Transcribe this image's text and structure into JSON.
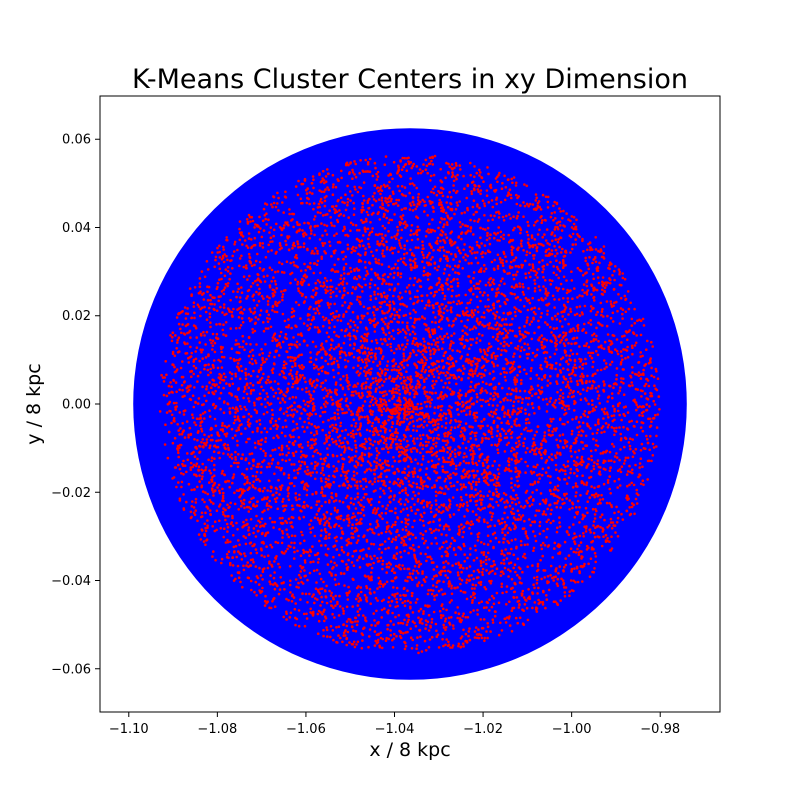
{
  "chart_data": {
    "type": "scatter",
    "title": "K-Means Cluster Centers in xy Dimension",
    "xlabel": "x / 8 kpc",
    "ylabel": "y / 8 kpc",
    "xlim": [
      -1.1065,
      -0.9665
    ],
    "ylim": [
      -0.0698,
      0.0698
    ],
    "xticks": [
      -1.1,
      -1.08,
      -1.06,
      -1.04,
      -1.02,
      -1.0,
      -0.98
    ],
    "xtick_labels": [
      "−1.10",
      "−1.08",
      "−1.06",
      "−1.04",
      "−1.02",
      "−1.00",
      "−0.98"
    ],
    "yticks": [
      -0.06,
      -0.04,
      -0.02,
      0.0,
      0.02,
      0.04,
      0.06
    ],
    "ytick_labels": [
      "−0.06",
      "−0.04",
      "−0.02",
      "0.00",
      "0.02",
      "0.04",
      "0.06"
    ],
    "grid": false,
    "series": [
      {
        "role": "data points",
        "color": "#0000ff",
        "shape": "filled disk",
        "center": [
          -1.0365,
          0.0
        ],
        "radius": 0.0625,
        "description": "dense uniform cloud filling the disk"
      },
      {
        "role": "cluster centers",
        "color": "#ff0000",
        "center": [
          -1.0365,
          0.0
        ],
        "radius": 0.0565,
        "approx_count": 9000,
        "description": "many small red points, denser toward the center"
      }
    ]
  }
}
